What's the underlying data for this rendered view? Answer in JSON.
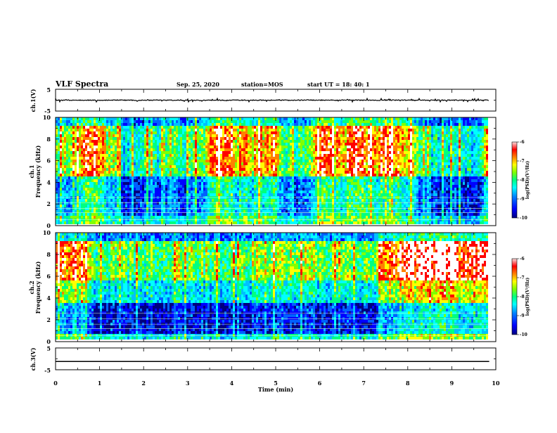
{
  "header": {
    "title": "VLF Spectra",
    "date": "Sep. 25, 2020",
    "station": "station=MOS",
    "start_ut": "start  UT  =   18: 40: 1"
  },
  "chart_data": [
    {
      "type": "line",
      "name": "ch1-waveform",
      "ylabel": "ch.1(V)",
      "ylim": [
        -5,
        5
      ],
      "yticks": [
        "5",
        "-5"
      ],
      "trace_value": 0.0,
      "x_extent": [
        0,
        9.85
      ]
    },
    {
      "type": "heatmap",
      "name": "ch1-spectrogram",
      "ylabel": "ch.1",
      "ylabel2": "Frequency (kHz)",
      "ylim": [
        0,
        10
      ],
      "yticks": [
        "0",
        "2",
        "4",
        "6",
        "8",
        "10"
      ],
      "xlim": [
        0,
        10
      ],
      "data_extent_x": [
        0,
        9.85
      ],
      "colorbar": {
        "label": "log(PSD)(V²/Hz)",
        "range": [
          -10,
          -6
        ],
        "ticks": [
          "-6",
          "-7",
          "-8",
          "-9",
          "-10"
        ]
      }
    },
    {
      "type": "heatmap",
      "name": "ch2-spectrogram",
      "ylabel": "ch.2",
      "ylabel2": "Frequency (kHz)",
      "ylim": [
        0,
        10
      ],
      "yticks": [
        "0",
        "2",
        "4",
        "6",
        "8",
        "10"
      ],
      "xlim": [
        0,
        10
      ],
      "data_extent_x": [
        0,
        9.85
      ],
      "colorbar": {
        "label": "log(PSD)(V²/Hz)",
        "range": [
          -10,
          -6
        ],
        "ticks": [
          "-6",
          "-7",
          "-8",
          "-9",
          "-10"
        ]
      }
    },
    {
      "type": "line",
      "name": "ch3-waveform",
      "ylabel": "ch.3(V)",
      "ylim": [
        -5,
        5
      ],
      "yticks": [
        "5",
        "-5"
      ],
      "trace_value": -1.2,
      "x_extent": [
        0,
        9.85
      ]
    }
  ],
  "xaxis": {
    "label": "Time (min)",
    "ticks": [
      "0",
      "1",
      "2",
      "3",
      "4",
      "5",
      "6",
      "7",
      "8",
      "9",
      "10"
    ],
    "xlim": [
      0,
      10
    ]
  },
  "colors": {
    "palette": [
      "#00007f",
      "#0000ff",
      "#0080ff",
      "#00ffff",
      "#00ff80",
      "#80ff00",
      "#ffff00",
      "#ff8000",
      "#ff0000",
      "#ffffff"
    ]
  }
}
